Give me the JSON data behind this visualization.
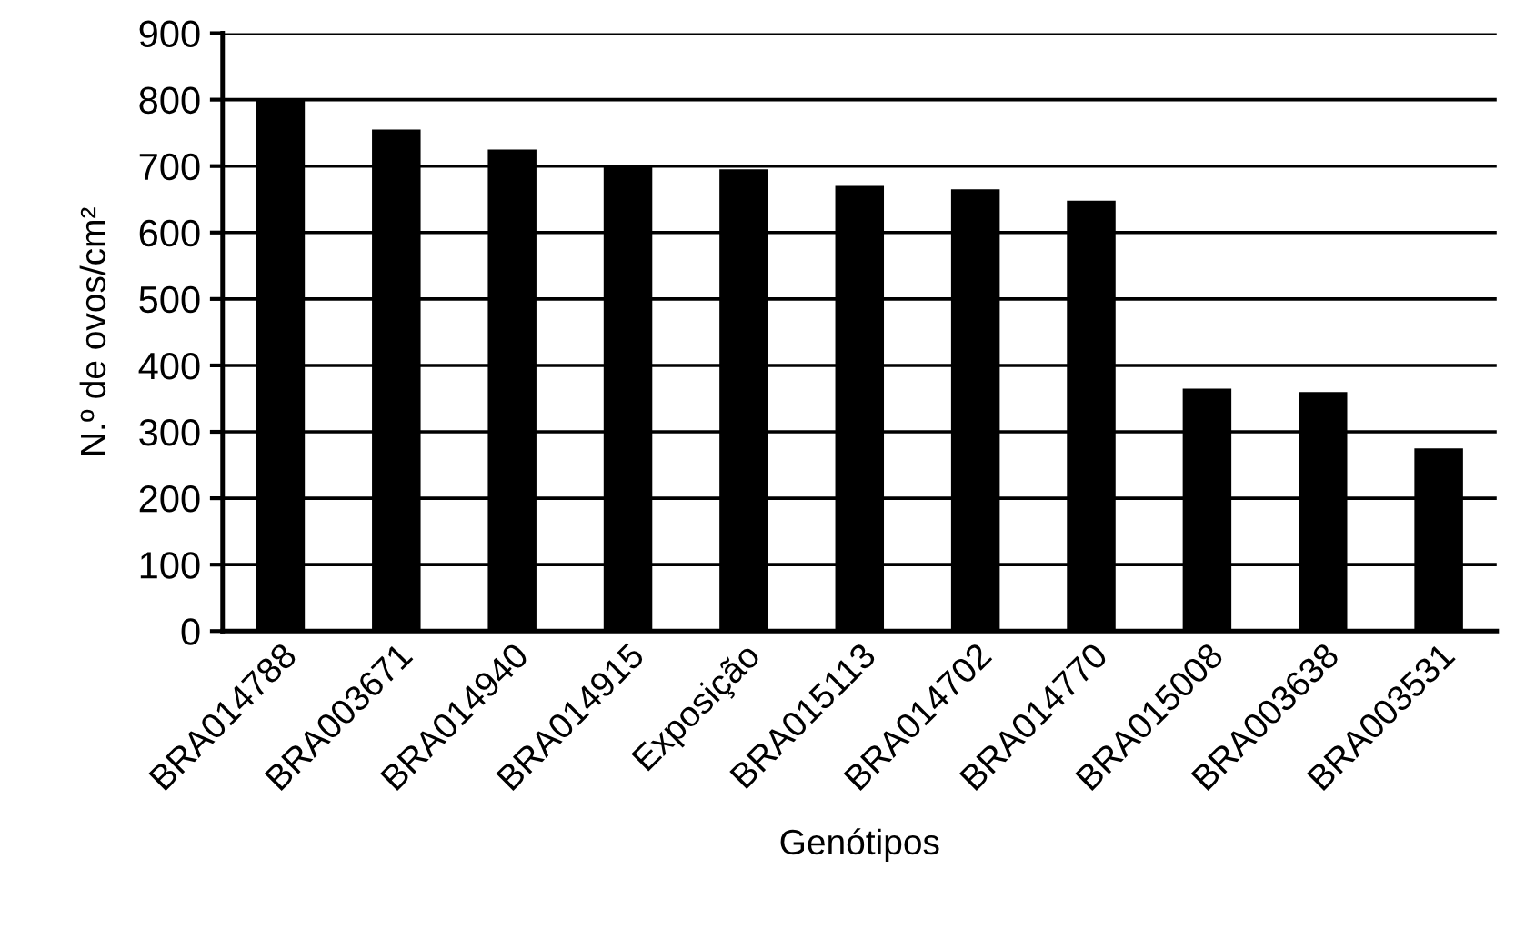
{
  "chart_data": {
    "type": "bar",
    "xlabel": "Genótipos",
    "ylabel": "N.º de ovos/cm²",
    "categories": [
      "BRA014788",
      "BRA003671",
      "BRA014940",
      "BRA014915",
      "Exposição",
      "BRA015113",
      "BRA014702",
      "BRA014770",
      "BRA015008",
      "BRA003638",
      "BRA003531"
    ],
    "values": [
      800,
      755,
      725,
      702,
      695,
      670,
      665,
      648,
      365,
      360,
      275
    ],
    "color": "#000000",
    "ylim": [
      0,
      900
    ],
    "yticks": [
      0,
      100,
      200,
      300,
      400,
      500,
      600,
      700,
      800,
      900
    ],
    "grid": "y"
  }
}
